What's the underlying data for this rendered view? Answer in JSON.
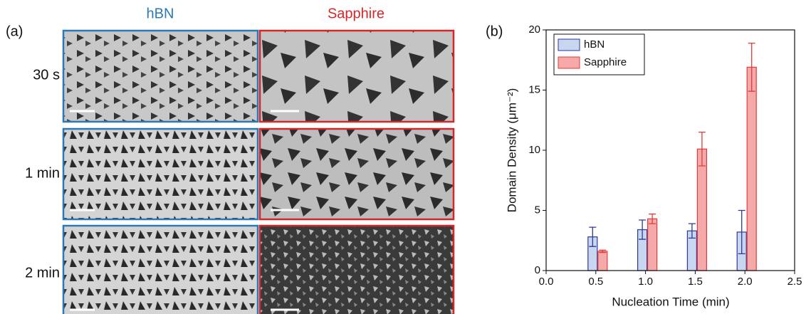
{
  "panel_a": {
    "label": "(a)",
    "columns": [
      "hBN",
      "Sapphire"
    ],
    "rows": [
      "30 s",
      "1 min",
      "2 min"
    ]
  },
  "chart_data": {
    "type": "bar",
    "label": "(b)",
    "x_label": "Nucleation Time (min)",
    "y_label": "Domain Density (μm⁻²)",
    "x": [
      0.5,
      1.0,
      1.5,
      2.0
    ],
    "series": [
      {
        "name": "hBN",
        "color": "#c9d6f0",
        "edge_color": "#2b3a9c",
        "values": [
          2.8,
          3.4,
          3.3,
          3.2
        ],
        "errors": [
          0.8,
          0.8,
          0.6,
          1.8
        ]
      },
      {
        "name": "Sapphire",
        "color": "#f5a9a9",
        "edge_color": "#e23b3b",
        "values": [
          1.6,
          4.3,
          10.1,
          16.9
        ],
        "errors": [
          0.1,
          0.4,
          1.4,
          2.0
        ]
      }
    ],
    "xlim": [
      0,
      2.5
    ],
    "xticks": [
      {
        "value": 0,
        "label": "0.0"
      },
      {
        "value": 0.5,
        "label": "0.5"
      },
      {
        "value": 1,
        "label": "1.0"
      },
      {
        "value": 1.5,
        "label": "1.5"
      },
      {
        "value": 2,
        "label": "2.0"
      },
      {
        "value": 2.5,
        "label": "2.5"
      }
    ],
    "ylim": [
      0,
      20
    ],
    "yticks": [
      0,
      5,
      10,
      15,
      20
    ],
    "legend": "upper left"
  }
}
